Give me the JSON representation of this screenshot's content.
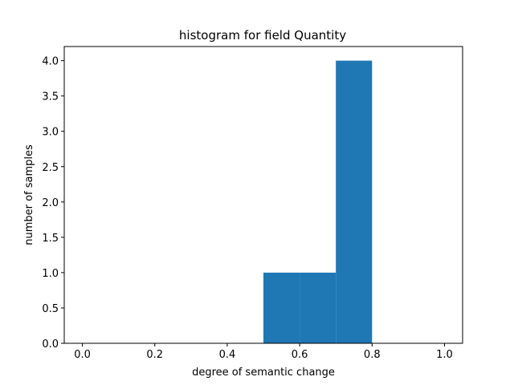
{
  "chart_data": {
    "type": "bar",
    "title": "histogram for field Quantity",
    "xlabel": "degree of semantic change",
    "ylabel": "number of samples",
    "xlim": [
      -0.05,
      1.05
    ],
    "ylim": [
      0,
      4.2
    ],
    "xticks": [
      "0.0",
      "0.2",
      "0.4",
      "0.6",
      "0.8",
      "1.0"
    ],
    "yticks": [
      "0.0",
      "0.5",
      "1.0",
      "1.5",
      "2.0",
      "2.5",
      "3.0",
      "3.5",
      "4.0"
    ],
    "bins": [
      {
        "start": 0.5,
        "end": 0.6,
        "value": 1
      },
      {
        "start": 0.6,
        "end": 0.7,
        "value": 1
      },
      {
        "start": 0.7,
        "end": 0.8,
        "value": 4
      }
    ],
    "grid": false,
    "bar_color": "#1f77b4"
  }
}
